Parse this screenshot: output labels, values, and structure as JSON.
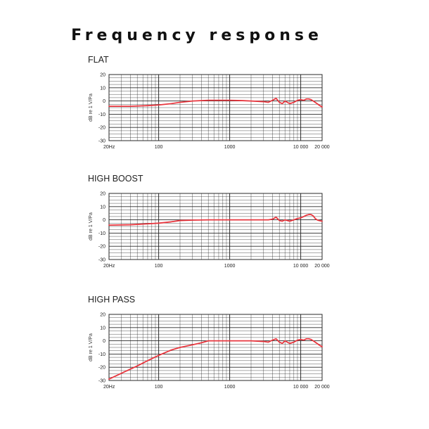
{
  "page": {
    "title": "Frequency response"
  },
  "colors": {
    "curve": "#e8373f",
    "grid": "#2a2a2a"
  },
  "chart_data": [
    {
      "type": "line",
      "title": "FLAT",
      "xlabel": "",
      "ylabel": "dB re 1 V/Pa",
      "xscale": "log",
      "xlim": [
        20,
        20000
      ],
      "ylim": [
        -30,
        20
      ],
      "yticks": [
        20,
        10,
        0,
        -10,
        -20,
        -30
      ],
      "xtick_labels": [
        {
          "v": 20,
          "t": "20Hz"
        },
        {
          "v": 100,
          "t": "100"
        },
        {
          "v": 1000,
          "t": "1000"
        },
        {
          "v": 10000,
          "t": "10 000"
        },
        {
          "v": 20000,
          "t": "20 000"
        }
      ],
      "grid": true,
      "series": [
        {
          "x": [
            20,
            40,
            70,
            100,
            150,
            200,
            300,
            500,
            800,
            1000,
            1500,
            2000,
            3000,
            3500,
            4000,
            4500,
            5000,
            5500,
            6000,
            7000,
            8000,
            9000,
            10000,
            11000,
            12000,
            13000,
            14000,
            15000,
            16000,
            17000,
            18000,
            20000
          ],
          "y": [
            -4,
            -4,
            -3.5,
            -3,
            -2,
            -1,
            0,
            0.5,
            0.5,
            0.5,
            0.3,
            0,
            -0.5,
            -1,
            0.5,
            2,
            -1,
            -2,
            0,
            -2,
            -1,
            0.5,
            1,
            0.5,
            1.5,
            1.5,
            1,
            0,
            -1,
            -2,
            -3,
            -4.5
          ]
        }
      ]
    },
    {
      "type": "line",
      "title": "HIGH BOOST",
      "xlabel": "",
      "ylabel": "dB re 1 V/Pa",
      "xscale": "log",
      "xlim": [
        20,
        20000
      ],
      "ylim": [
        -30,
        20
      ],
      "yticks": [
        20,
        10,
        0,
        -10,
        -20,
        -30
      ],
      "xtick_labels": [
        {
          "v": 20,
          "t": "20Hz"
        },
        {
          "v": 100,
          "t": "100"
        },
        {
          "v": 1000,
          "t": "1000"
        },
        {
          "v": 10000,
          "t": "10 000"
        },
        {
          "v": 20000,
          "t": "20 000"
        }
      ],
      "grid": true,
      "series": [
        {
          "x": [
            20,
            40,
            70,
            100,
            150,
            200,
            300,
            500,
            800,
            1000,
            1500,
            2000,
            3000,
            3500,
            4000,
            4500,
            5000,
            5500,
            6000,
            7000,
            8000,
            9000,
            10000,
            11000,
            12000,
            13000,
            14000,
            15000,
            16000,
            17000,
            18000,
            20000
          ],
          "y": [
            -4,
            -3.7,
            -3,
            -2.5,
            -1.5,
            -0.5,
            -0.2,
            0,
            0,
            0,
            0,
            0,
            0,
            0,
            0.5,
            2,
            -0.5,
            -1,
            0,
            -1,
            0,
            1,
            1.5,
            2.5,
            3.5,
            4,
            4,
            3,
            1,
            0,
            -0.5,
            -1
          ]
        }
      ]
    },
    {
      "type": "line",
      "title": "HIGH PASS",
      "xlabel": "",
      "ylabel": "dB re 1 V/Pa",
      "xscale": "log",
      "xlim": [
        20,
        20000
      ],
      "ylim": [
        -30,
        20
      ],
      "yticks": [
        20,
        10,
        0,
        -10,
        -20,
        -30
      ],
      "xtick_labels": [
        {
          "v": 20,
          "t": "20Hz"
        },
        {
          "v": 100,
          "t": "100"
        },
        {
          "v": 1000,
          "t": "1000"
        },
        {
          "v": 10000,
          "t": "10 000"
        },
        {
          "v": 20000,
          "t": "20 000"
        }
      ],
      "grid": true,
      "series": [
        {
          "x": [
            20,
            30,
            50,
            70,
            100,
            150,
            200,
            300,
            400,
            500,
            800,
            1000,
            1500,
            2000,
            3000,
            3500,
            4000,
            4500,
            5000,
            5500,
            6000,
            7000,
            8000,
            9000,
            10000,
            11000,
            12000,
            13000,
            14000,
            15000,
            16000,
            17000,
            18000,
            20000
          ],
          "y": [
            -29,
            -24.5,
            -19,
            -15,
            -11,
            -7,
            -5,
            -3,
            -1.5,
            0,
            0,
            0,
            0,
            0,
            -0.5,
            -1,
            0.5,
            1.5,
            -1,
            -2,
            0,
            -2,
            -1,
            0.5,
            1,
            0.5,
            1.5,
            1.5,
            1,
            0,
            -1,
            -2,
            -3,
            -4.5
          ]
        }
      ]
    }
  ]
}
